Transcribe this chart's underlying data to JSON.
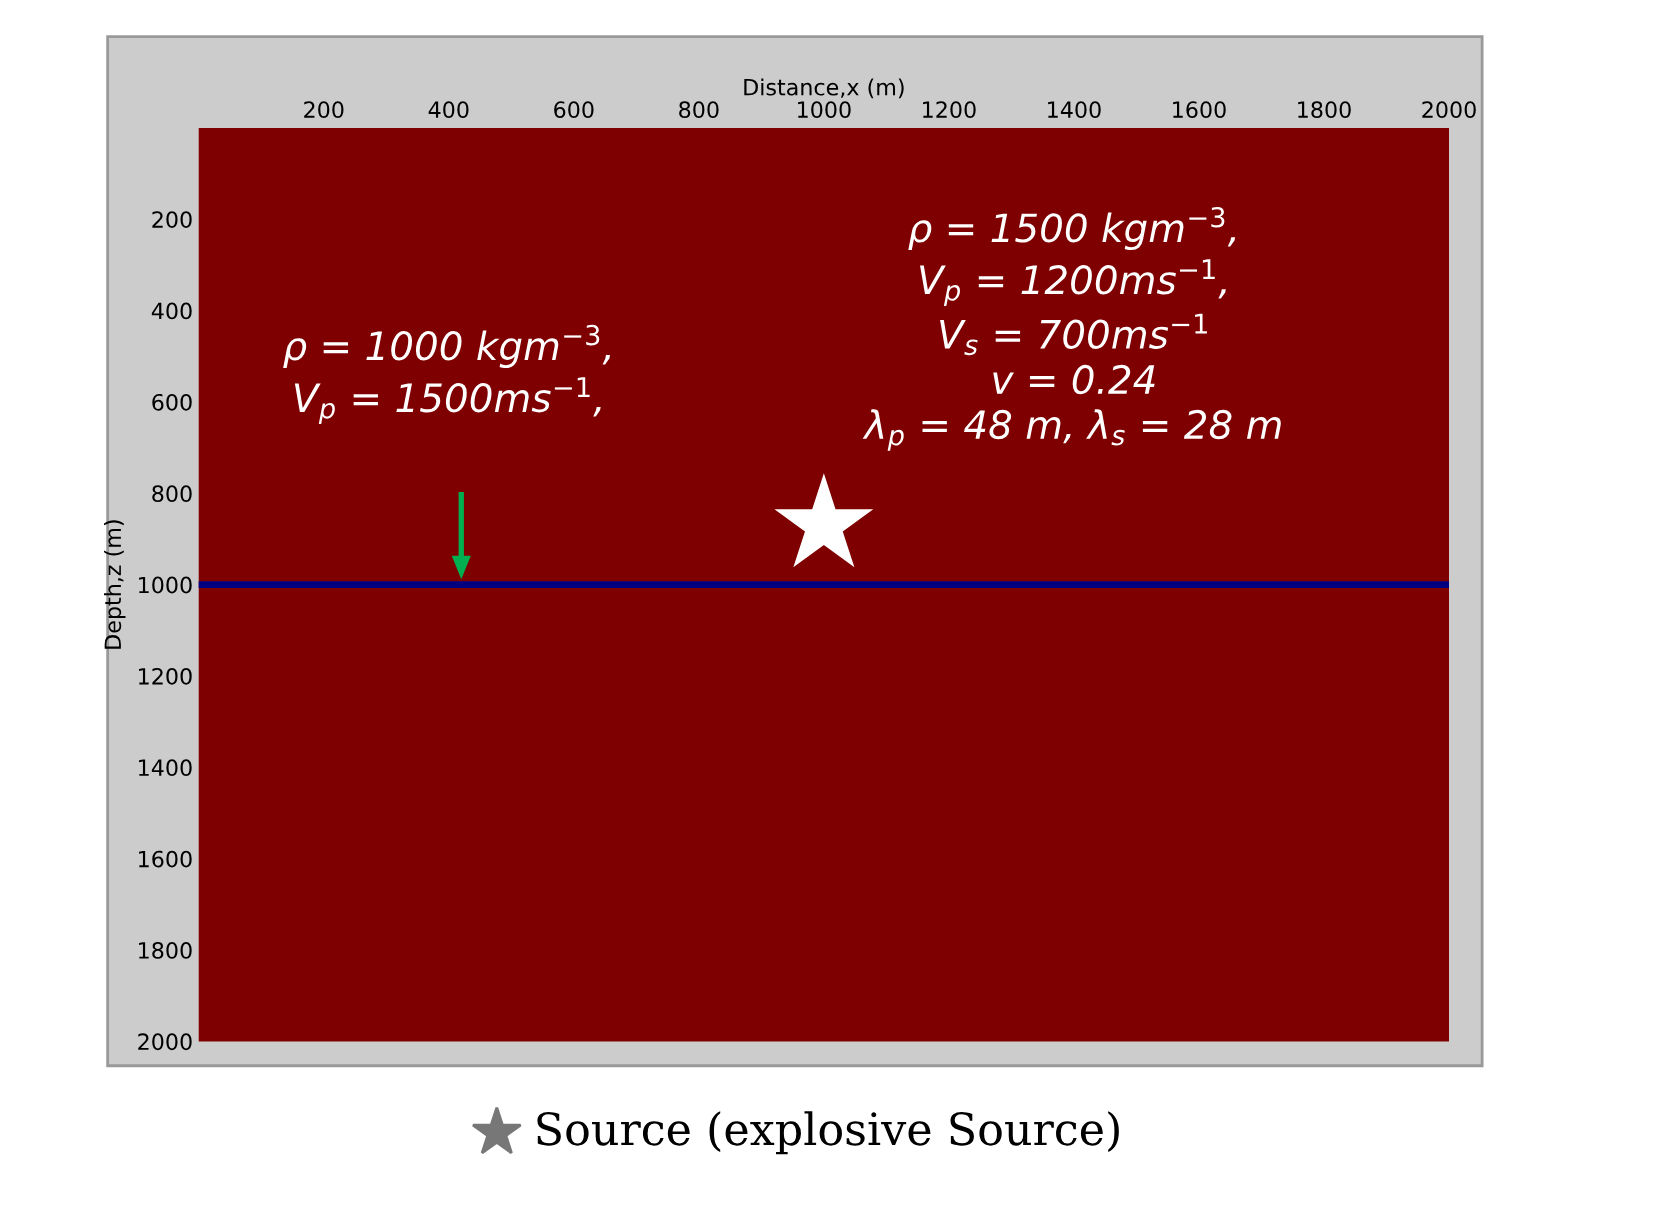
{
  "chart_data": {
    "type": "scatter",
    "xlabel": "Distance,x (m)",
    "ylabel": "Depth,z (m)",
    "x": [
      1000
    ],
    "values": [
      870
    ],
    "color": "#ffffff",
    "marker": "star",
    "xlim": [
      0,
      2000
    ],
    "xticks": [
      200,
      400,
      600,
      800,
      1000,
      1200,
      1400,
      1600,
      1800,
      2000
    ],
    "ylim": [
      2000,
      0
    ],
    "yticks": [
      200,
      400,
      600,
      800,
      1000,
      1200,
      1400,
      1600,
      1800,
      2000
    ],
    "grid": false,
    "ref_lines": [
      {
        "axis": "y",
        "value": 1000,
        "color": "#000080",
        "line_style": "solid"
      }
    ],
    "annotations": [
      "ρ = 1000 kgm$^{−3}$,\nV$_{p}$ = 1500ms$^{−1}$,",
      "ρ = 1500 kgm$^{−3}$,\nV$_{p}$ = 1200ms$^{−1}$,\nV$_{s}$ = 700ms$^{−1}$\nv = 0.24\nλ$_{p}$ = 48 m, λ$_{s}$ = 28 m",
      "Source (explosive Source)"
    ]
  }
}
